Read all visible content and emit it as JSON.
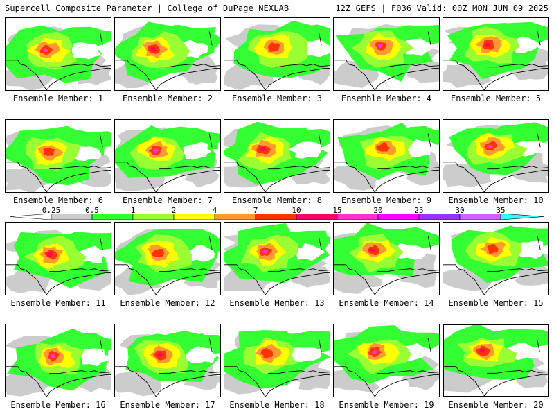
{
  "header": {
    "left": "Supercell Composite Parameter | College of DuPage NEXLAB",
    "right": "12Z GEFS | F036 Valid: 00Z MON JUN 09 2025"
  },
  "colorbar": {
    "labels": [
      "0.25",
      "0.5",
      "1",
      "2",
      "4",
      "7",
      "10",
      "15",
      "20",
      "25",
      "30",
      "35"
    ],
    "colors": [
      "#cccccc",
      "#33ff33",
      "#99ff33",
      "#ffff00",
      "#ff9933",
      "#ff3300",
      "#ff0066",
      "#ff33cc",
      "#ff00ff",
      "#9933ff",
      "#cc66ff",
      "#33ffff"
    ],
    "left_tail_color": "#ffffff"
  },
  "members": [
    {
      "caption": "Ensemble Member: 1"
    },
    {
      "caption": "Ensemble Member: 2"
    },
    {
      "caption": "Ensemble Member: 3"
    },
    {
      "caption": "Ensemble Member: 4"
    },
    {
      "caption": "Ensemble Member: 5"
    },
    {
      "caption": "Ensemble Member: 6"
    },
    {
      "caption": "Ensemble Member: 7"
    },
    {
      "caption": "Ensemble Member: 8"
    },
    {
      "caption": "Ensemble Member: 9"
    },
    {
      "caption": "Ensemble Member: 10"
    },
    {
      "caption": "Ensemble Member: 11"
    },
    {
      "caption": "Ensemble Member: 12"
    },
    {
      "caption": "Ensemble Member: 13"
    },
    {
      "caption": "Ensemble Member: 14"
    },
    {
      "caption": "Ensemble Member: 15"
    },
    {
      "caption": "Ensemble Member: 16"
    },
    {
      "caption": "Ensemble Member: 17"
    },
    {
      "caption": "Ensemble Member: 18"
    },
    {
      "caption": "Ensemble Member: 19"
    },
    {
      "caption": "Ensemble Member: 20",
      "selected": true
    }
  ]
}
